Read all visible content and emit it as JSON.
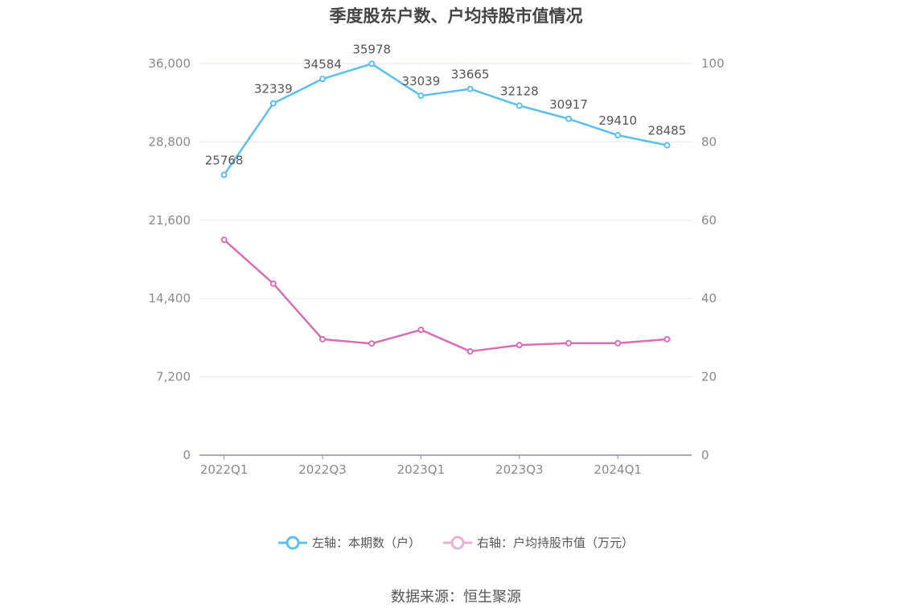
{
  "title": "季度股东户数、户均持股市值情况",
  "source": "数据来源：恒生聚源",
  "colors": {
    "left_series": "#5bc0eb",
    "right_series": "#d86fb4",
    "grid": "#e3e6f0",
    "axis": "#8c8fa6",
    "tick": "#8a8a8a"
  },
  "chart_data": {
    "type": "line",
    "x": [
      "2022Q1",
      "2022Q2",
      "2022Q3",
      "2022Q4",
      "2023Q1",
      "2023Q2",
      "2023Q3",
      "2023Q4",
      "2024Q1",
      "2024Q2"
    ],
    "x_tick_labels": [
      "2022Q1",
      "2022Q3",
      "2023Q1",
      "2023Q3",
      "2024Q1"
    ],
    "left_axis": {
      "ticks": [
        "0",
        "7,200",
        "14,400",
        "21,600",
        "28,800",
        "36,000"
      ],
      "ylim": [
        0,
        36000
      ]
    },
    "right_axis": {
      "ticks": [
        "0",
        "20",
        "40",
        "60",
        "80",
        "100"
      ],
      "ylim": [
        0,
        100
      ]
    },
    "series": [
      {
        "name": "左轴：本期数（户）",
        "axis": "left",
        "values": [
          25768,
          32339,
          34584,
          35978,
          33039,
          33665,
          32128,
          30917,
          29410,
          28485
        ],
        "labels": [
          "25768",
          "32339",
          "34584",
          "35978",
          "33039",
          "33665",
          "32128",
          "30917",
          "29410",
          "28485"
        ]
      },
      {
        "name": "右轴：户均持股市值（万元）",
        "axis": "right",
        "values": [
          55.0,
          43.8,
          29.6,
          28.5,
          32.0,
          26.5,
          28.1,
          28.6,
          28.6,
          29.6
        ]
      }
    ],
    "legend_position": "bottom",
    "grid": true
  }
}
